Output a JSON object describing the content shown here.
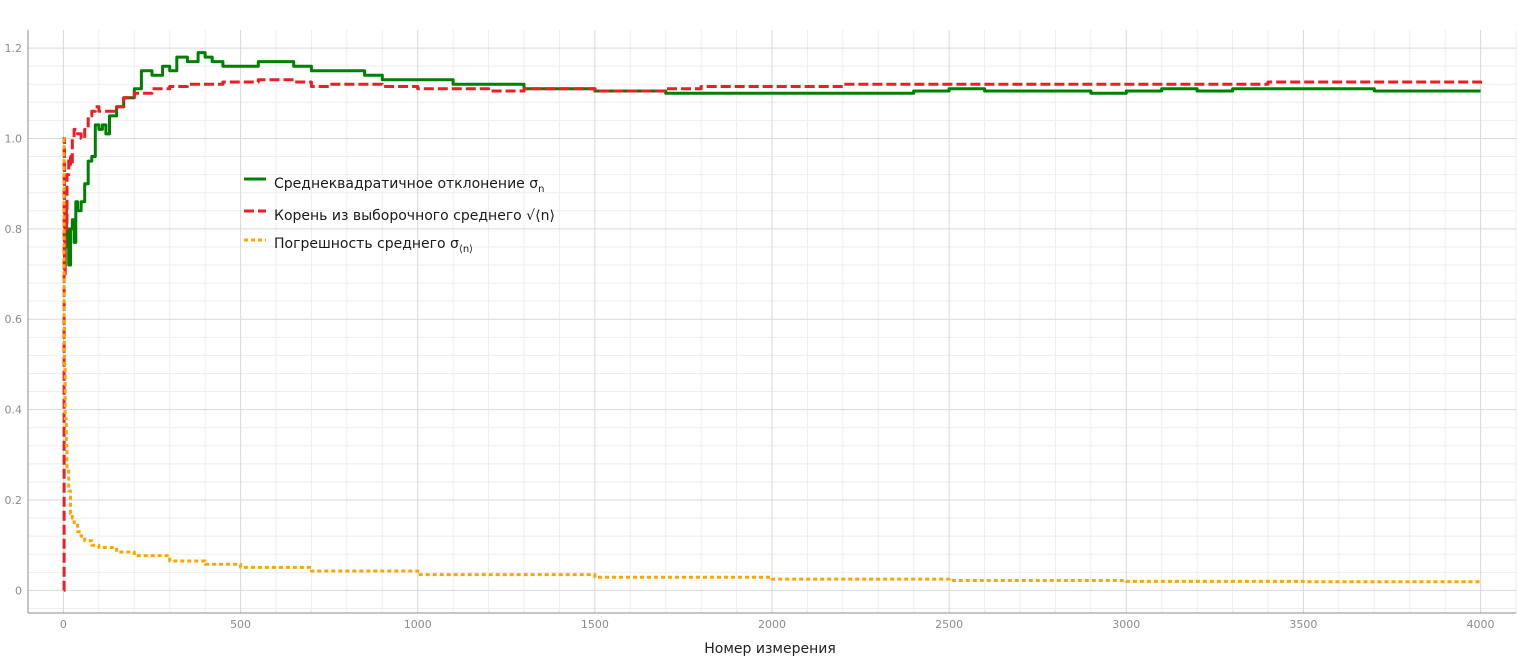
{
  "chart_data": {
    "type": "line",
    "title": "",
    "xlabel": "Номер измерения",
    "ylabel": "",
    "xlim": [
      -100,
      4100
    ],
    "ylim": [
      -0.05,
      1.24
    ],
    "xticks": [
      0,
      500,
      1000,
      1500,
      2000,
      2500,
      3000,
      3500,
      4000
    ],
    "xtick_labels": [
      "0",
      "500",
      "1000",
      "1500",
      "2000",
      "2500",
      "3000",
      "3500",
      "4000"
    ],
    "yticks": [
      0,
      0.2,
      0.4,
      0.6,
      0.8,
      1.0,
      1.2
    ],
    "ytick_labels": [
      "0",
      "0.2",
      "0.4",
      "0.6",
      "0.8",
      "1.0",
      "1.2"
    ],
    "grid": true,
    "legend_position": "upper-left-inside",
    "series": [
      {
        "name": "Среднеквадратичное отклонение σn",
        "legend_main": "Среднеквадратичное отклонение σ",
        "legend_sub": "n",
        "color": "#008000",
        "style": "solid",
        "x": [
          1,
          3,
          5,
          8,
          10,
          15,
          20,
          25,
          30,
          35,
          40,
          50,
          60,
          70,
          80,
          90,
          100,
          110,
          120,
          130,
          150,
          170,
          200,
          220,
          250,
          280,
          300,
          320,
          350,
          380,
          400,
          420,
          450,
          480,
          500,
          550,
          600,
          650,
          700,
          750,
          800,
          850,
          900,
          950,
          1000,
          1100,
          1200,
          1300,
          1400,
          1500,
          1600,
          1700,
          1800,
          1900,
          2000,
          2100,
          2200,
          2300,
          2400,
          2500,
          2600,
          2700,
          2800,
          2900,
          3000,
          3100,
          3200,
          3300,
          3400,
          3500,
          3600,
          3700,
          3800,
          3900,
          4000
        ],
        "y": [
          0.75,
          0.72,
          0.85,
          0.76,
          0.8,
          0.72,
          0.8,
          0.82,
          0.77,
          0.86,
          0.84,
          0.86,
          0.9,
          0.95,
          0.96,
          1.03,
          1.02,
          1.03,
          1.01,
          1.05,
          1.07,
          1.09,
          1.11,
          1.15,
          1.14,
          1.16,
          1.15,
          1.18,
          1.17,
          1.19,
          1.18,
          1.17,
          1.16,
          1.16,
          1.16,
          1.17,
          1.17,
          1.16,
          1.15,
          1.15,
          1.15,
          1.14,
          1.13,
          1.13,
          1.13,
          1.12,
          1.12,
          1.11,
          1.11,
          1.105,
          1.105,
          1.1,
          1.1,
          1.1,
          1.1,
          1.1,
          1.1,
          1.1,
          1.105,
          1.11,
          1.105,
          1.105,
          1.105,
          1.1,
          1.105,
          1.11,
          1.105,
          1.11,
          1.11,
          1.11,
          1.11,
          1.105,
          1.105,
          1.105,
          1.105
        ]
      },
      {
        "name": "Корень из выборочного среднего √⟨n⟩",
        "legend_main": "Корень из выборочного среднего √⟨n⟩",
        "legend_sub": "",
        "color": "#ee1c25",
        "style": "dashed",
        "x": [
          1,
          2,
          3,
          5,
          8,
          10,
          15,
          20,
          25,
          30,
          40,
          50,
          60,
          70,
          80,
          90,
          100,
          120,
          150,
          170,
          200,
          250,
          300,
          350,
          400,
          450,
          500,
          550,
          600,
          650,
          700,
          750,
          800,
          900,
          1000,
          1100,
          1200,
          1300,
          1400,
          1500,
          1600,
          1700,
          1800,
          1900,
          2000,
          2200,
          2400,
          2600,
          2800,
          3000,
          3200,
          3400,
          3600,
          3800,
          4000
        ],
        "y": [
          0.0,
          1.0,
          0.7,
          0.85,
          0.8,
          0.92,
          0.96,
          0.94,
          1.0,
          1.02,
          1.01,
          1.0,
          1.02,
          1.05,
          1.06,
          1.07,
          1.06,
          1.06,
          1.07,
          1.09,
          1.1,
          1.11,
          1.115,
          1.12,
          1.12,
          1.125,
          1.125,
          1.13,
          1.13,
          1.125,
          1.115,
          1.12,
          1.12,
          1.115,
          1.11,
          1.11,
          1.105,
          1.11,
          1.11,
          1.105,
          1.105,
          1.11,
          1.115,
          1.115,
          1.115,
          1.12,
          1.12,
          1.12,
          1.12,
          1.12,
          1.12,
          1.125,
          1.125,
          1.125,
          1.12
        ]
      },
      {
        "name": "Погрешность среднего σ⟨n⟩",
        "legend_main": "Погрешность среднего σ",
        "legend_sub": "⟨n⟩",
        "color": "#ffa500",
        "style": "dotted",
        "x": [
          1,
          2,
          3,
          5,
          8,
          10,
          15,
          20,
          25,
          30,
          40,
          50,
          60,
          80,
          100,
          150,
          200,
          300,
          400,
          500,
          700,
          1000,
          1500,
          2000,
          2500,
          3000,
          3500,
          4000
        ],
        "y": [
          1.0,
          0.6,
          0.5,
          0.38,
          0.32,
          0.27,
          0.22,
          0.17,
          0.16,
          0.15,
          0.13,
          0.12,
          0.11,
          0.1,
          0.095,
          0.085,
          0.077,
          0.065,
          0.058,
          0.051,
          0.043,
          0.035,
          0.029,
          0.025,
          0.022,
          0.02,
          0.019,
          0.018
        ]
      }
    ]
  }
}
